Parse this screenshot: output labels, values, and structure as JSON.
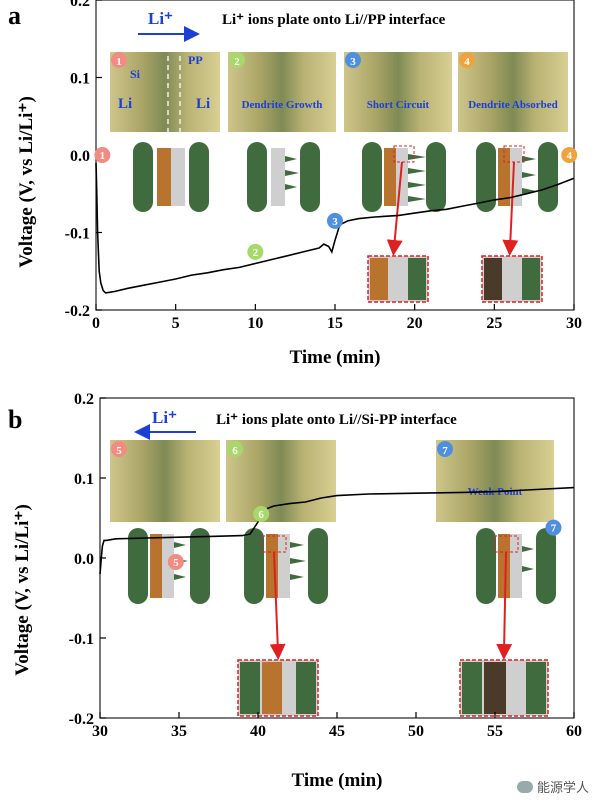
{
  "chart_data": [
    {
      "type": "line",
      "panel_label": "a",
      "title": "Li⁺ ions plate onto Li//PP interface",
      "arrow_label": "Li⁺",
      "arrow_direction": "right",
      "xlabel": "Time (min)",
      "ylabel": "Voltage (V, vs Li/Li⁺)",
      "xlim": [
        0,
        30
      ],
      "ylim": [
        -0.2,
        0.2
      ],
      "xticks": [
        "0",
        "5",
        "10",
        "15",
        "20",
        "25",
        "30"
      ],
      "yticks": [
        "-0.2",
        "-0.1",
        "0.0",
        "0.1",
        "0.2"
      ],
      "series": [
        {
          "color": "#000000",
          "x": [
            0,
            0.05,
            0.1,
            0.2,
            0.3,
            0.45,
            0.6,
            0.9,
            1.2,
            2,
            3,
            4,
            5,
            6,
            7,
            8,
            9,
            10,
            11,
            12,
            13,
            14,
            14.3,
            14.6,
            14.8,
            15.0,
            15.3,
            15.8,
            16.5,
            17.5,
            19,
            20,
            21,
            22,
            23,
            24,
            25,
            26,
            27,
            28,
            29,
            30
          ],
          "y": [
            -0.01,
            -0.05,
            -0.1,
            -0.15,
            -0.165,
            -0.175,
            -0.178,
            -0.177,
            -0.176,
            -0.172,
            -0.168,
            -0.164,
            -0.16,
            -0.155,
            -0.152,
            -0.148,
            -0.145,
            -0.14,
            -0.135,
            -0.13,
            -0.125,
            -0.12,
            -0.115,
            -0.118,
            -0.125,
            -0.11,
            -0.09,
            -0.085,
            -0.082,
            -0.08,
            -0.078,
            -0.075,
            -0.072,
            -0.07,
            -0.066,
            -0.062,
            -0.058,
            -0.055,
            -0.05,
            -0.045,
            -0.038,
            -0.03
          ]
        }
      ],
      "markers": [
        {
          "label": "1",
          "x": 0.4,
          "y": 0.0,
          "color": "#f28b82"
        },
        {
          "label": "2",
          "x": 10,
          "y": -0.125,
          "color": "#a6d96a"
        },
        {
          "label": "3",
          "x": 15,
          "y": -0.085,
          "color": "#4f8fe0"
        },
        {
          "label": "4",
          "x": 29.7,
          "y": 0.0,
          "color": "#f0a33c"
        }
      ],
      "photos": [
        {
          "label": "1",
          "color": "#f28b82",
          "caption": "",
          "texts": [
            "Si",
            "PP",
            "Li",
            "Li"
          ]
        },
        {
          "label": "2",
          "color": "#a6d96a",
          "caption": "Dendrite Growth"
        },
        {
          "label": "3",
          "color": "#4f8fe0",
          "caption": "Short Circuit"
        },
        {
          "label": "4",
          "color": "#f0a33c",
          "caption": "Dendrite Absorbed"
        }
      ]
    },
    {
      "type": "line",
      "panel_label": "b",
      "title": "Li⁺ ions plate onto Li//Si-PP interface",
      "arrow_label": "Li⁺",
      "arrow_direction": "left",
      "xlabel": "Time (min)",
      "ylabel": "Voltage (V, vs Li/Li⁺)",
      "xlim": [
        30,
        60
      ],
      "ylim": [
        -0.2,
        0.2
      ],
      "xticks": [
        "30",
        "35",
        "40",
        "45",
        "50",
        "55",
        "60"
      ],
      "yticks": [
        "-0.2",
        "-0.1",
        "0.0",
        "0.1",
        "0.2"
      ],
      "series": [
        {
          "color": "#000000",
          "x": [
            30,
            30.08,
            30.15,
            30.25,
            30.4,
            31,
            33,
            35,
            37,
            39,
            39.5,
            40,
            40.3,
            40.6,
            41,
            42,
            43,
            44,
            45,
            47,
            50,
            53,
            55,
            57,
            60
          ],
          "y": [
            -0.02,
            0.0,
            0.015,
            0.022,
            0.022,
            0.024,
            0.025,
            0.026,
            0.027,
            0.028,
            0.03,
            0.045,
            0.055,
            0.062,
            0.065,
            0.068,
            0.07,
            0.075,
            0.078,
            0.08,
            0.081,
            0.082,
            0.083,
            0.085,
            0.088
          ]
        }
      ],
      "markers": [
        {
          "label": "5",
          "x": 34.8,
          "y": -0.005,
          "color": "#f28b82"
        },
        {
          "label": "6",
          "x": 40.2,
          "y": 0.055,
          "color": "#a6d96a"
        },
        {
          "label": "7",
          "x": 58.7,
          "y": 0.038,
          "color": "#4f8fe0"
        }
      ],
      "photos": [
        {
          "label": "5",
          "color": "#f28b82",
          "caption": ""
        },
        {
          "label": "6",
          "color": "#a6d96a",
          "caption": ""
        },
        {
          "label": "7",
          "color": "#4f8fe0",
          "caption": "Weak Point"
        }
      ]
    }
  ],
  "footer": {
    "text": "能源学人"
  }
}
